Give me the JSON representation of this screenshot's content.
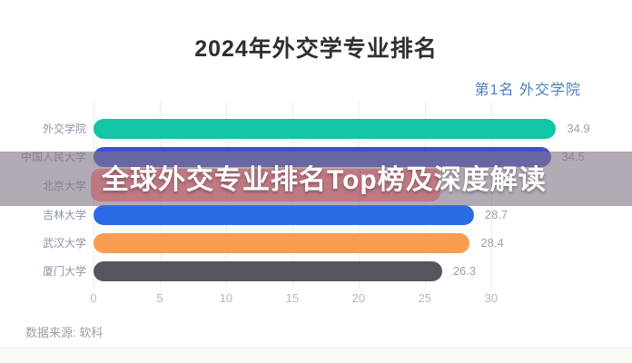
{
  "title": "2024年外交学专业排名",
  "legend_text": "第1名 外交学院",
  "overlay": {
    "headline": "全球外交专业排名Top榜及深度解读"
  },
  "source_note": "数据来源: 软科",
  "colors": {
    "accent_teal": "#12c5a4",
    "accent_indigo": "#3d50d2",
    "accent_blue": "#2b6be6",
    "accent_orange": "#f99d51",
    "accent_dark": "#54575e",
    "legend_blue": "#4d7ec3"
  },
  "chart_data": {
    "type": "bar",
    "orientation": "horizontal",
    "title": "2024年外交学专业排名",
    "categories": [
      "外交学院",
      "中国人民大学",
      "北京大学",
      "吉林大学",
      "武汉大学",
      "厦门大学"
    ],
    "values": [
      34.9,
      34.5,
      null,
      28.7,
      28.4,
      26.3
    ],
    "value_labels": [
      "34.9",
      "34.5",
      "",
      "28.7",
      "28.4",
      "26.3"
    ],
    "bar_colors": [
      "#12c5a4",
      "#3d50d2",
      null,
      "#2b6be6",
      "#f99d51",
      "#54575e"
    ],
    "note": "第3名(北京大学)的条形与数值被横幅遮挡，不可见",
    "xticks": [
      0,
      5,
      10,
      15,
      20,
      25,
      30
    ],
    "xlim": [
      0,
      37
    ],
    "grid": "vertical",
    "legend_position": "top-right"
  }
}
